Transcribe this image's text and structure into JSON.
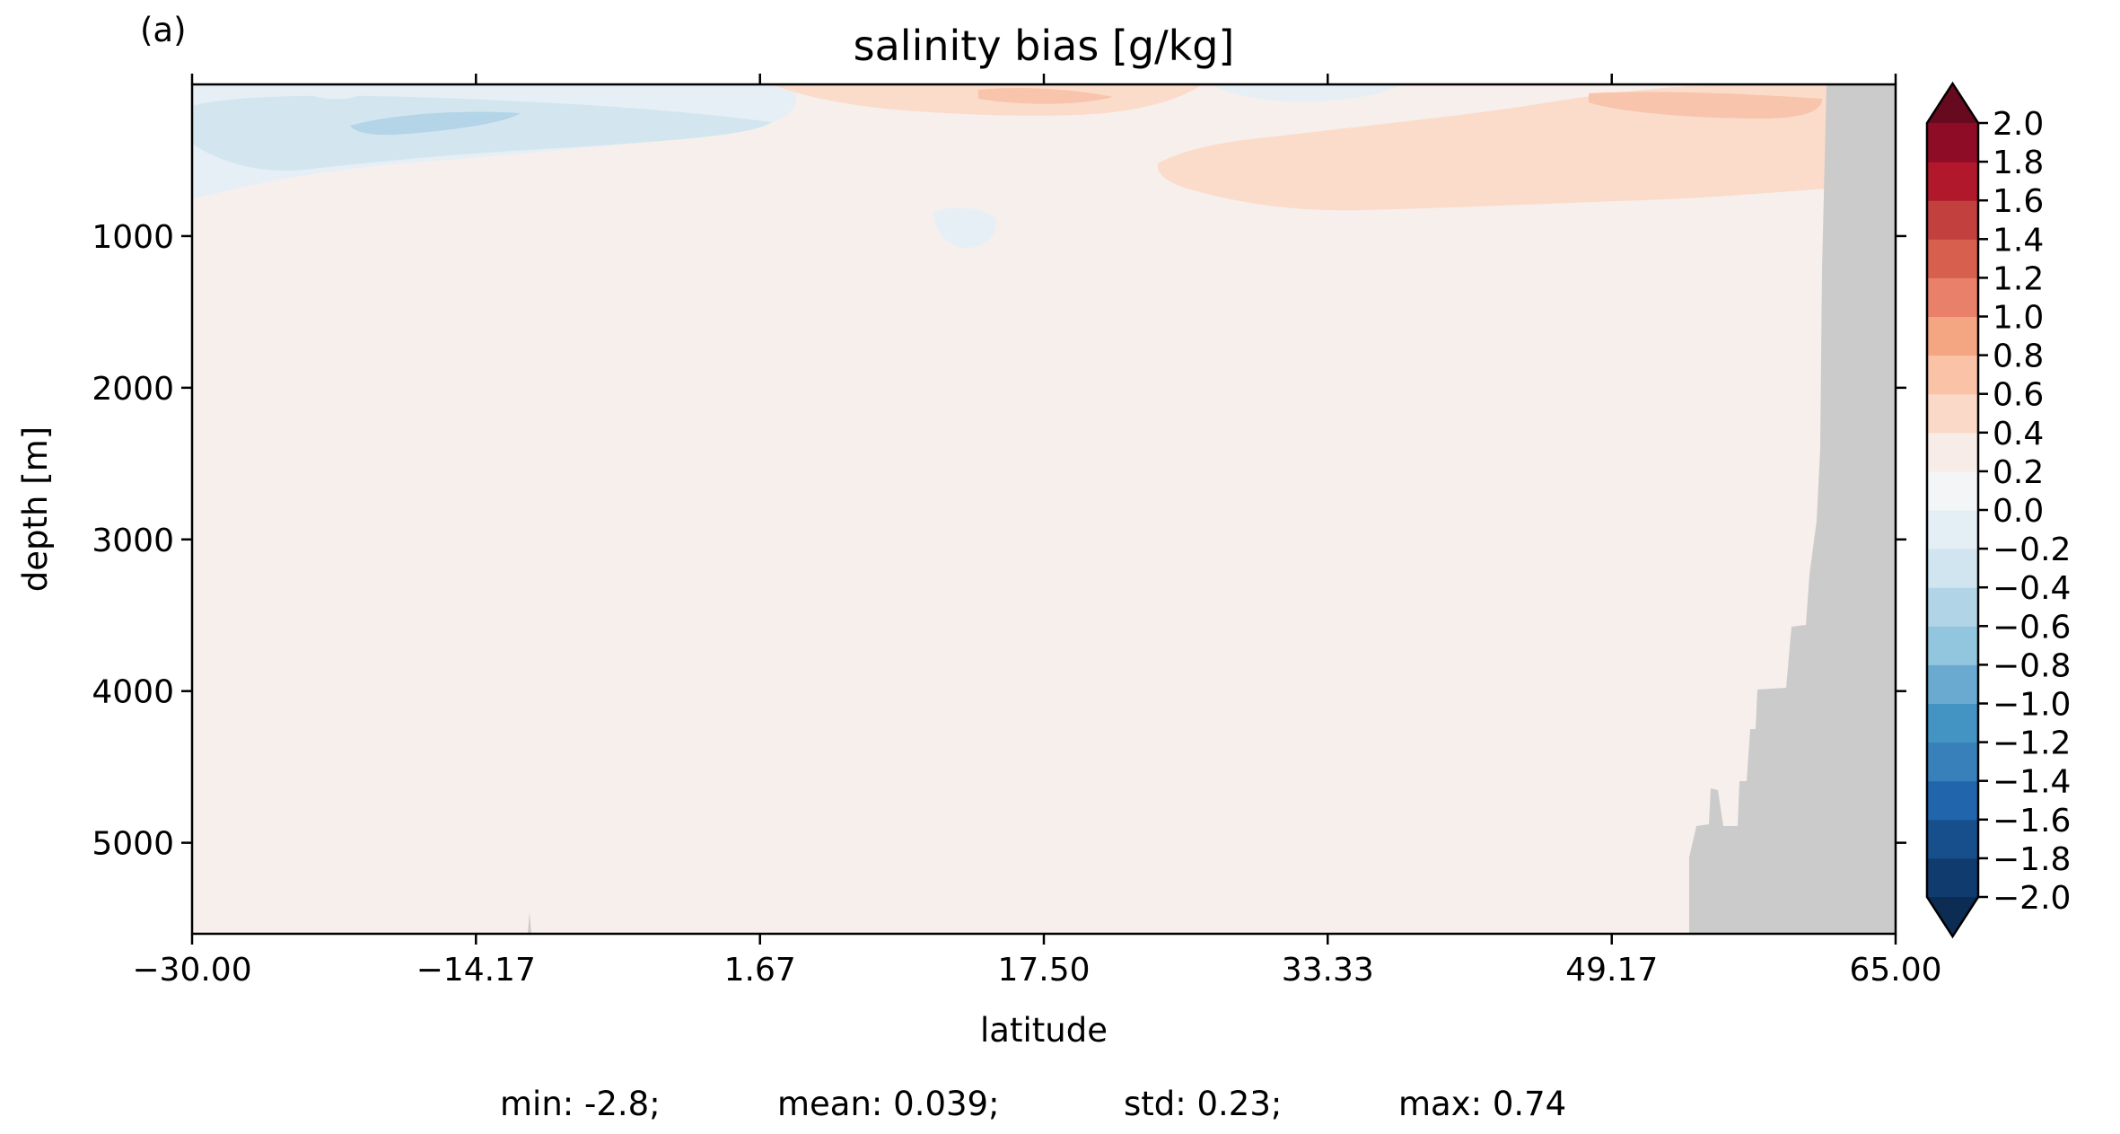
{
  "panel_label": "(a)",
  "chart_data": {
    "type": "heatmap",
    "title": "salinity bias [g/kg]",
    "xlabel": "latitude",
    "ylabel": "depth [m]",
    "xlim": [
      -30.0,
      65.0
    ],
    "ylim": [
      5600,
      0
    ],
    "x_ticks": [
      -30.0,
      -14.17,
      1.67,
      17.5,
      33.33,
      49.17,
      65.0
    ],
    "x_tick_labels": [
      "−30.00",
      "−14.17",
      "1.67",
      "17.50",
      "33.33",
      "49.17",
      "65.00"
    ],
    "y_ticks": [
      1000,
      2000,
      3000,
      4000,
      5000
    ],
    "y_tick_labels": [
      "1000",
      "2000",
      "3000",
      "4000",
      "5000"
    ],
    "colorbar": {
      "colormap": "RdBu_r",
      "extend": "both",
      "levels": [
        -2.0,
        -1.8,
        -1.6,
        -1.4,
        -1.2,
        -1.0,
        -0.8,
        -0.6,
        -0.4,
        -0.2,
        0.0,
        0.2,
        0.4,
        0.6,
        0.8,
        1.0,
        1.2,
        1.4,
        1.6,
        1.8,
        2.0
      ],
      "tick_labels": [
        "−2.0",
        "−1.8",
        "−1.6",
        "−1.4",
        "−1.2",
        "−1.0",
        "−0.8",
        "−0.6",
        "−0.4",
        "−0.2",
        "0.0",
        "0.2",
        "0.4",
        "0.6",
        "0.8",
        "1.0",
        "1.2",
        "1.4",
        "1.6",
        "1.8",
        "2.0"
      ],
      "colors": [
        "#0f3b6e",
        "#174f8c",
        "#2166ac",
        "#3880ba",
        "#4393c3",
        "#6aa9d0",
        "#92c5de",
        "#b1d5e7",
        "#d1e5f0",
        "#e4eef5",
        "#f3f5f7",
        "#f7ece8",
        "#fbd9c8",
        "#fac3a7",
        "#f4a582",
        "#e8806a",
        "#d6604d",
        "#c2413f",
        "#b2182b",
        "#8e0c25",
        "#6a0a20"
      ],
      "under_color": "#0c2c54",
      "over_color": "#670a1f"
    },
    "land_color": "#cbcbcb",
    "background_color": "#f7efec",
    "regions": [
      {
        "value": -0.2,
        "color": "#e4eef5"
      },
      {
        "value": -0.4,
        "color": "#d1e5f0"
      },
      {
        "value": -0.6,
        "color": "#b1d5e7"
      },
      {
        "value": 0.4,
        "color": "#fbdcca"
      },
      {
        "value": 0.6,
        "color": "#f8c4ab"
      }
    ],
    "stats": {
      "min": -2.8,
      "mean": 0.039,
      "std": 0.23,
      "max": 0.74
    }
  },
  "stats_text": {
    "min": "min: -2.8;",
    "mean": "mean: 0.039;",
    "std": "std: 0.23;",
    "max": "max: 0.74"
  }
}
